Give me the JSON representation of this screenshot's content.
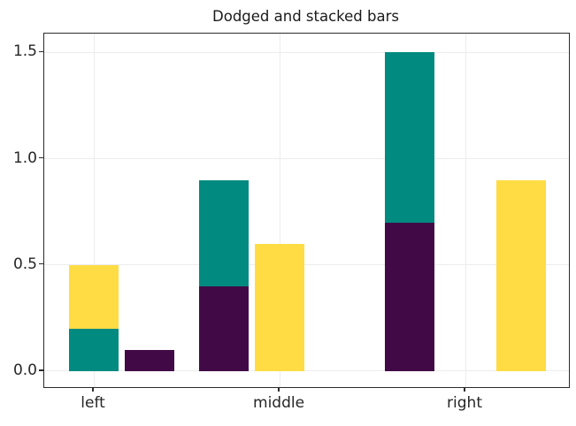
{
  "chart_data": {
    "type": "bar",
    "variant": "dodged and stacked",
    "title": "Dodged and stacked bars",
    "categories": [
      "left",
      "middle",
      "right"
    ],
    "category_positions": [
      0,
      1,
      2
    ],
    "y_ticks": [
      0,
      0.5,
      1,
      1.5
    ],
    "y_tick_labels": [
      "0.0",
      "0.5",
      "1.0",
      "1.5"
    ],
    "xlim": [
      -0.267,
      2.557
    ],
    "ylim": [
      -0.075,
      1.589
    ],
    "grid": true,
    "legend_position": "none",
    "bar_width": 0.27,
    "colors": {
      "purple": "#410A47",
      "teal": "#008A80",
      "yellow": "#FFDC43",
      "grid": "#ececec",
      "spine": "#2b2b2b",
      "text": "#262626"
    },
    "series": [
      {
        "name": "purple",
        "color_key": "purple",
        "values": [
          0.1,
          0.4,
          0.7
        ]
      },
      {
        "name": "teal",
        "color_key": "teal",
        "values": [
          0.2,
          0.5,
          0.8
        ]
      },
      {
        "name": "yellow",
        "color_key": "yellow",
        "values": [
          0.3,
          0.6,
          0.9
        ]
      }
    ],
    "bars": [
      {
        "group": "left",
        "x": 0.0,
        "segments": [
          {
            "color": "teal",
            "from": 0,
            "to": 0.2
          },
          {
            "color": "yellow",
            "from": 0.2,
            "to": 0.5
          }
        ]
      },
      {
        "group": "left",
        "x": 0.3,
        "segments": [
          {
            "color": "purple",
            "from": 0,
            "to": 0.1
          }
        ]
      },
      {
        "group": "middle",
        "x": 0.7,
        "segments": [
          {
            "color": "purple",
            "from": 0,
            "to": 0.4
          },
          {
            "color": "teal",
            "from": 0.4,
            "to": 0.9
          }
        ]
      },
      {
        "group": "middle",
        "x": 1.0,
        "segments": [
          {
            "color": "yellow",
            "from": 0,
            "to": 0.6
          }
        ]
      },
      {
        "group": "right",
        "x": 1.7,
        "segments": [
          {
            "color": "purple",
            "from": 0,
            "to": 0.7
          },
          {
            "color": "teal",
            "from": 0.7,
            "to": 1.5
          }
        ]
      },
      {
        "group": "right",
        "x": 2.3,
        "segments": [
          {
            "color": "yellow",
            "from": 0,
            "to": 0.9
          }
        ]
      }
    ]
  }
}
